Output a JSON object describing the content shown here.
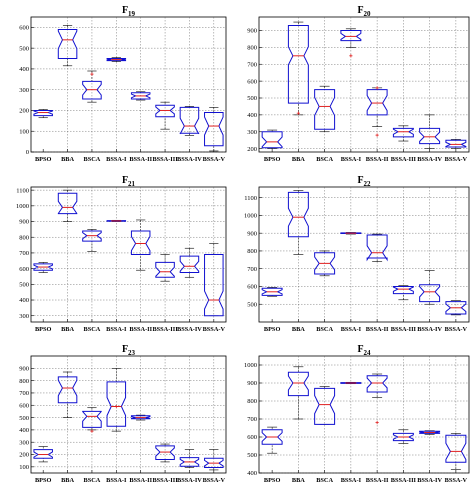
{
  "chart_data": [
    {
      "type": "box",
      "title": "F19",
      "categories": [
        "BPSO",
        "BBA",
        "BSCA",
        "BSSA-I",
        "BSSA-II",
        "BSSA-III",
        "BSSA-IV",
        "BSSA-V"
      ],
      "ylim": [
        0,
        650
      ],
      "yticks": [
        0,
        100,
        200,
        300,
        400,
        500,
        600
      ],
      "grid": true,
      "boxes": [
        {
          "min": 165,
          "q1": 175,
          "median": 190,
          "q3": 200,
          "max": 205,
          "outliers": []
        },
        {
          "min": 415,
          "q1": 450,
          "median": 540,
          "q3": 590,
          "max": 610,
          "outliers": []
        },
        {
          "min": 240,
          "q1": 255,
          "median": 300,
          "q3": 340,
          "max": 390,
          "outliers": [
            375
          ]
        },
        {
          "min": 435,
          "q1": 440,
          "median": 445,
          "q3": 450,
          "max": 455,
          "outliers": []
        },
        {
          "min": 250,
          "q1": 255,
          "median": 270,
          "q3": 285,
          "max": 290,
          "outliers": []
        },
        {
          "min": 110,
          "q1": 170,
          "median": 200,
          "q3": 225,
          "max": 240,
          "outliers": []
        },
        {
          "min": 80,
          "q1": 90,
          "median": 125,
          "q3": 215,
          "max": 220,
          "outliers": []
        },
        {
          "min": 5,
          "q1": 30,
          "median": 125,
          "q3": 190,
          "max": 215,
          "outliers": []
        }
      ]
    },
    {
      "type": "box",
      "title": "F20",
      "categories": [
        "BPSO",
        "BBA",
        "BSCA",
        "BSSA-I",
        "BSSA-II",
        "BSSA-III",
        "BSSA-IV",
        "BSSA-V"
      ],
      "ylim": [
        180,
        980
      ],
      "yticks": [
        200,
        300,
        400,
        500,
        600,
        700,
        800,
        900
      ],
      "grid": true,
      "boxes": [
        {
          "min": 200,
          "q1": 205,
          "median": 240,
          "q3": 300,
          "max": 310,
          "outliers": []
        },
        {
          "min": 400,
          "q1": 470,
          "median": 750,
          "q3": 930,
          "max": 950,
          "outliers": [
            410
          ]
        },
        {
          "min": 300,
          "q1": 315,
          "median": 450,
          "q3": 550,
          "max": 570,
          "outliers": []
        },
        {
          "min": 800,
          "q1": 840,
          "median": 865,
          "q3": 900,
          "max": 910,
          "outliers": [
            750
          ]
        },
        {
          "min": 330,
          "q1": 400,
          "median": 470,
          "q3": 550,
          "max": 560,
          "outliers": [
            280,
            560
          ]
        },
        {
          "min": 245,
          "q1": 270,
          "median": 300,
          "q3": 320,
          "max": 335,
          "outliers": []
        },
        {
          "min": 200,
          "q1": 230,
          "median": 270,
          "q3": 320,
          "max": 400,
          "outliers": []
        },
        {
          "min": 200,
          "q1": 210,
          "median": 225,
          "q3": 250,
          "max": 255,
          "outliers": []
        }
      ]
    },
    {
      "type": "box",
      "title": "F21",
      "categories": [
        "BPSO",
        "BBA",
        "BSCA",
        "BSSA-I",
        "BSSA-II",
        "BSSA-III",
        "BSSA-IV",
        "BSSA-V"
      ],
      "ylim": [
        260,
        1120
      ],
      "yticks": [
        300,
        400,
        500,
        600,
        700,
        800,
        900,
        1000,
        1100
      ],
      "grid": true,
      "boxes": [
        {
          "min": 575,
          "q1": 590,
          "median": 610,
          "q3": 630,
          "max": 640,
          "outliers": []
        },
        {
          "min": 900,
          "q1": 950,
          "median": 990,
          "q3": 1080,
          "max": 1100,
          "outliers": []
        },
        {
          "min": 710,
          "q1": 775,
          "median": 810,
          "q3": 840,
          "max": 850,
          "outliers": []
        },
        {
          "min": 900,
          "q1": 902,
          "median": 904,
          "q3": 906,
          "max": 908,
          "outliers": []
        },
        {
          "min": 590,
          "q1": 690,
          "median": 760,
          "q3": 840,
          "max": 910,
          "outliers": []
        },
        {
          "min": 520,
          "q1": 545,
          "median": 580,
          "q3": 640,
          "max": 690,
          "outliers": []
        },
        {
          "min": 545,
          "q1": 575,
          "median": 615,
          "q3": 680,
          "max": 730,
          "outliers": []
        },
        {
          "min": 300,
          "q1": 300,
          "median": 400,
          "q3": 690,
          "max": 760,
          "outliers": []
        }
      ]
    },
    {
      "type": "box",
      "title": "F22",
      "categories": [
        "BPSO",
        "BBA",
        "BSCA",
        "BSSA-I",
        "BSSA-II",
        "BSSA-III",
        "BSSA-IV",
        "BSSA-V"
      ],
      "ylim": [
        400,
        1160
      ],
      "yticks": [
        500,
        600,
        700,
        800,
        900,
        1000,
        1100
      ],
      "grid": true,
      "boxes": [
        {
          "min": 545,
          "q1": 550,
          "median": 570,
          "q3": 590,
          "max": 595,
          "outliers": []
        },
        {
          "min": 780,
          "q1": 880,
          "median": 990,
          "q3": 1130,
          "max": 1140,
          "outliers": []
        },
        {
          "min": 660,
          "q1": 670,
          "median": 730,
          "q3": 790,
          "max": 800,
          "outliers": []
        },
        {
          "min": 895,
          "q1": 898,
          "median": 900,
          "q3": 902,
          "max": 904,
          "outliers": []
        },
        {
          "min": 740,
          "q1": 760,
          "median": 790,
          "q3": 890,
          "max": 895,
          "outliers": []
        },
        {
          "min": 525,
          "q1": 560,
          "median": 585,
          "q3": 600,
          "max": 605,
          "outliers": []
        },
        {
          "min": 500,
          "q1": 515,
          "median": 570,
          "q3": 610,
          "max": 690,
          "outliers": []
        },
        {
          "min": 440,
          "q1": 445,
          "median": 480,
          "q3": 515,
          "max": 520,
          "outliers": []
        }
      ]
    },
    {
      "type": "box",
      "title": "F23",
      "categories": [
        "BPSO",
        "BBA",
        "BSCA",
        "BSSA-I",
        "BSSA-II",
        "BSSA-III",
        "BSSA-IV",
        "BSSA-V"
      ],
      "ylim": [
        50,
        1000
      ],
      "yticks": [
        100,
        200,
        300,
        400,
        500,
        600,
        700,
        800,
        900
      ],
      "grid": true,
      "boxes": [
        {
          "min": 140,
          "q1": 170,
          "median": 200,
          "q3": 240,
          "max": 265,
          "outliers": []
        },
        {
          "min": 500,
          "q1": 620,
          "median": 740,
          "q3": 830,
          "max": 870,
          "outliers": []
        },
        {
          "min": 400,
          "q1": 420,
          "median": 510,
          "q3": 550,
          "max": 580,
          "outliers": [
            390
          ]
        },
        {
          "min": 390,
          "q1": 430,
          "median": 590,
          "q3": 790,
          "max": 900,
          "outliers": [
            590
          ]
        },
        {
          "min": 480,
          "q1": 490,
          "median": 500,
          "q3": 515,
          "max": 520,
          "outliers": []
        },
        {
          "min": 140,
          "q1": 160,
          "median": 220,
          "q3": 270,
          "max": 285,
          "outliers": []
        },
        {
          "min": 95,
          "q1": 105,
          "median": 140,
          "q3": 175,
          "max": 240,
          "outliers": []
        },
        {
          "min": 75,
          "q1": 95,
          "median": 130,
          "q3": 170,
          "max": 240,
          "outliers": []
        }
      ]
    },
    {
      "type": "box",
      "title": "F24",
      "categories": [
        "BPSO",
        "BBA",
        "BSCA",
        "BSSA-I",
        "BSSA-II",
        "BSSA-III",
        "BSSA-IV",
        "BSSA-V"
      ],
      "ylim": [
        400,
        1050
      ],
      "yticks": [
        400,
        500,
        600,
        700,
        800,
        900,
        1000
      ],
      "grid": true,
      "boxes": [
        {
          "min": 510,
          "q1": 560,
          "median": 600,
          "q3": 640,
          "max": 655,
          "outliers": []
        },
        {
          "min": 700,
          "q1": 830,
          "median": 900,
          "q3": 960,
          "max": 990,
          "outliers": []
        },
        {
          "min": 670,
          "q1": 670,
          "median": 780,
          "q3": 870,
          "max": 880,
          "outliers": []
        },
        {
          "min": 896,
          "q1": 898,
          "median": 900,
          "q3": 902,
          "max": 904,
          "outliers": []
        },
        {
          "min": 820,
          "q1": 850,
          "median": 900,
          "q3": 940,
          "max": 950,
          "outliers": [
            680
          ]
        },
        {
          "min": 565,
          "q1": 580,
          "median": 600,
          "q3": 620,
          "max": 640,
          "outliers": []
        },
        {
          "min": 615,
          "q1": 620,
          "median": 625,
          "q3": 632,
          "max": 635,
          "outliers": []
        },
        {
          "min": 420,
          "q1": 460,
          "median": 520,
          "q3": 610,
          "max": 620,
          "outliers": []
        }
      ]
    }
  ]
}
